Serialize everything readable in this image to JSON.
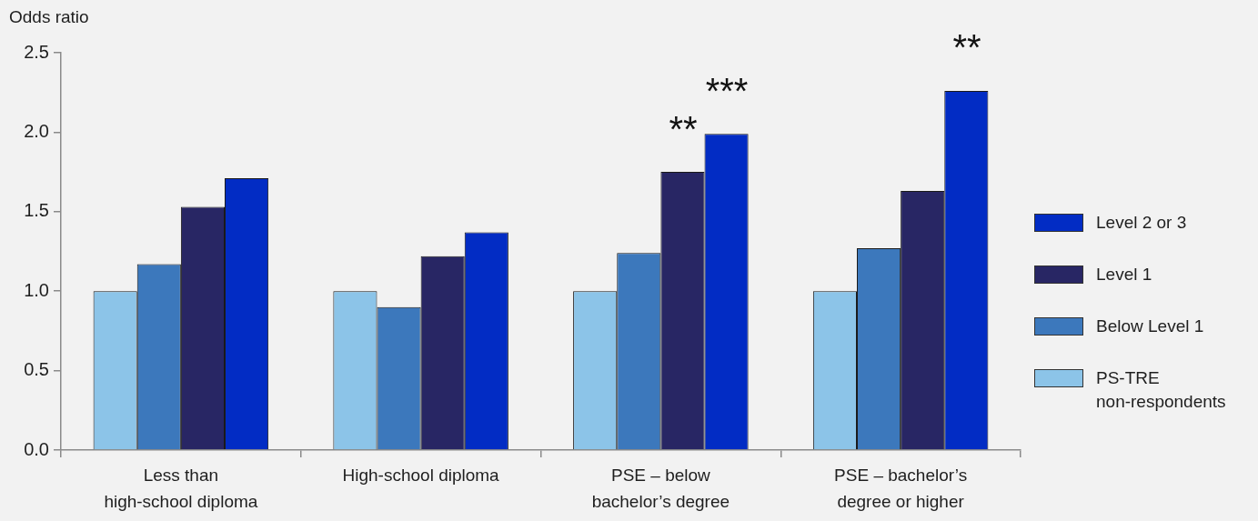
{
  "chart_data": {
    "type": "bar",
    "ylabel": "Odds ratio",
    "categories": [
      "Less than\nhigh-school diploma",
      "High-school diploma",
      "PSE – below\nbachelor’s degree",
      "PSE – bachelor’s\ndegree or higher"
    ],
    "series": [
      {
        "name": "PS-TRE\nnon-respondents",
        "color": "#8cc4e8",
        "values": [
          1.0,
          1.0,
          1.0,
          1.0
        ]
      },
      {
        "name": "Below Level 1",
        "color": "#3c78bc",
        "values": [
          1.17,
          0.9,
          1.24,
          1.27
        ]
      },
      {
        "name": "Level 1",
        "color": "#282664",
        "values": [
          1.53,
          1.22,
          1.75,
          1.63
        ]
      },
      {
        "name": "Level 2 or 3",
        "color": "#022cc4",
        "values": [
          1.71,
          1.37,
          1.99,
          2.26
        ]
      }
    ],
    "ylim": [
      0,
      2.5
    ],
    "yticks": [
      {
        "value": 0,
        "label": "0.0"
      },
      0.5,
      {
        "value": 1,
        "label": "1.0"
      },
      1.5,
      {
        "value": 2,
        "label": "2.0"
      },
      2.5
    ],
    "legend": "right",
    "annotations": [
      "**",
      "***",
      "**"
    ]
  }
}
